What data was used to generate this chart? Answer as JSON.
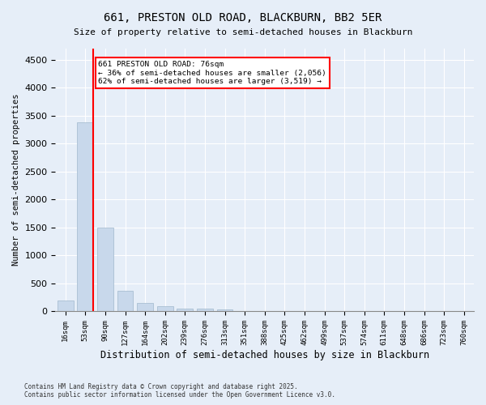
{
  "title1": "661, PRESTON OLD ROAD, BLACKBURN, BB2 5ER",
  "title2": "Size of property relative to semi-detached houses in Blackburn",
  "xlabel": "Distribution of semi-detached houses by size in Blackburn",
  "ylabel": "Number of semi-detached properties",
  "bins": [
    "16sqm",
    "53sqm",
    "90sqm",
    "127sqm",
    "164sqm",
    "202sqm",
    "239sqm",
    "276sqm",
    "313sqm",
    "351sqm",
    "388sqm",
    "425sqm",
    "462sqm",
    "499sqm",
    "537sqm",
    "574sqm",
    "611sqm",
    "648sqm",
    "686sqm",
    "723sqm",
    "760sqm"
  ],
  "values": [
    200,
    3380,
    1500,
    370,
    145,
    90,
    55,
    45,
    30,
    10,
    5,
    0,
    0,
    0,
    0,
    0,
    0,
    0,
    0,
    0,
    0
  ],
  "bar_color": "#c8d8eb",
  "bar_edge_color": "#a0b8cc",
  "red_line_x": 1.4,
  "annotation_line1": "661 PRESTON OLD ROAD: 76sqm",
  "annotation_line2": "← 36% of semi-detached houses are smaller (2,056)",
  "annotation_line3": "62% of semi-detached houses are larger (3,519) →",
  "ylim": [
    0,
    4700
  ],
  "yticks": [
    0,
    500,
    1000,
    1500,
    2000,
    2500,
    3000,
    3500,
    4000,
    4500
  ],
  "bg_color": "#e6eef8",
  "footnote1": "Contains HM Land Registry data © Crown copyright and database right 2025.",
  "footnote2": "Contains public sector information licensed under the Open Government Licence v3.0."
}
